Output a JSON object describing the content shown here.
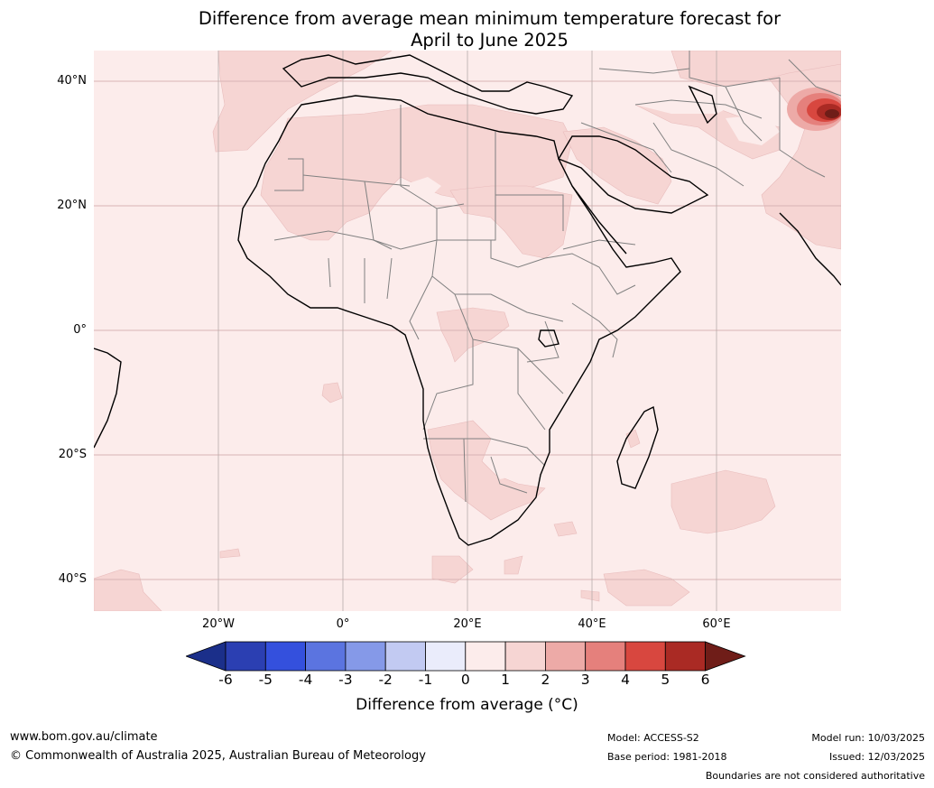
{
  "title": {
    "line1": "Difference from average mean minimum temperature forecast for",
    "line2": "April to June 2025"
  },
  "map": {
    "region": "Africa",
    "latitude_labels": [
      "40°N",
      "20°N",
      "0°",
      "20°S",
      "40°S"
    ],
    "longitude_labels": [
      "20°W",
      "0°",
      "20°E",
      "40°E",
      "60°E"
    ],
    "background_anomaly_range": "0 to 1",
    "highlight_anomaly_range": "1 to 2",
    "hotspot_anomaly": "above 6",
    "colors": {
      "background": "#fceceb",
      "anomaly_1_2": "#f6d5d3",
      "border_country": "#808080",
      "coastline": "#000000",
      "gridline": "#d8b4b4"
    }
  },
  "colorbar": {
    "ticks": [
      "-6",
      "-5",
      "-4",
      "-3",
      "-2",
      "-1",
      "0",
      "1",
      "2",
      "3",
      "4",
      "5",
      "6"
    ],
    "colors": [
      "#1b2f8a",
      "#2b3fb2",
      "#3450dd",
      "#5b74e0",
      "#8599e8",
      "#c2caf2",
      "#eaecfb",
      "#fceceb",
      "#f6d5d3",
      "#edaaa7",
      "#e5807c",
      "#d8473f",
      "#aa2a24",
      "#6f1d18"
    ],
    "label": "Difference from average (°C)"
  },
  "footer": {
    "website": "www.bom.gov.au/climate",
    "copyright": "© Commonwealth of Australia 2025, Australian Bureau of Meteorology",
    "model": "Model: ACCESS-S2",
    "base_period": "Base period: 1981-2018",
    "model_run": "Model run: 10/03/2025",
    "issued": "Issued: 12/03/2025",
    "disclaimer": "Boundaries are not considered authoritative"
  }
}
